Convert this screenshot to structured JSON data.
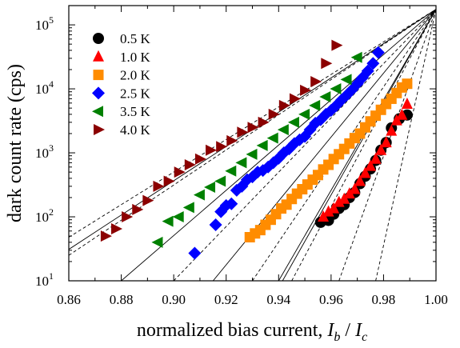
{
  "chart_data": {
    "type": "scatter",
    "xlabel": "normalized bias current, ",
    "xlabel_math": {
      "i": "I",
      "i_sub": "b",
      "sep": " / ",
      "c": "I",
      "c_sub": "c"
    },
    "ylabel": "dark count rate (cps)",
    "xlim": [
      0.86,
      1.0
    ],
    "ylim": [
      10,
      200000
    ],
    "y_scale": "log",
    "grid": false,
    "legend_position": "top-left",
    "x_ticks": [
      0.86,
      0.88,
      0.9,
      0.92,
      0.94,
      0.96,
      0.98,
      1.0
    ],
    "x_tick_labels": [
      "0.86",
      "0.88",
      "0.90",
      "0.92",
      "0.94",
      "0.96",
      "0.98",
      "1.00"
    ],
    "y_ticks": [
      {
        "value": 10,
        "base": "10",
        "exp": "1"
      },
      {
        "value": 100,
        "base": "10",
        "exp": "2"
      },
      {
        "value": 1000,
        "base": "10",
        "exp": "3"
      },
      {
        "value": 10000,
        "base": "10",
        "exp": "4"
      },
      {
        "value": 100000,
        "base": "10",
        "exp": "5"
      }
    ],
    "series": [
      {
        "name": "0.5 K",
        "marker": "circle",
        "color": "#000000",
        "x": [
          0.956,
          0.959,
          0.961,
          0.963,
          0.965,
          0.967,
          0.969,
          0.971,
          0.973,
          0.975,
          0.977,
          0.979,
          0.981,
          0.983,
          0.986,
          0.989
        ],
        "y": [
          82,
          88,
          110,
          135,
          155,
          200,
          240,
          330,
          430,
          560,
          760,
          1100,
          1450,
          2450,
          3400,
          3900
        ]
      },
      {
        "name": "1.0 K",
        "marker": "triangle-up",
        "color": "#ff0000",
        "x": [
          0.957,
          0.959,
          0.961,
          0.963,
          0.965,
          0.967,
          0.969,
          0.971,
          0.973,
          0.975,
          0.977,
          0.979,
          0.981,
          0.983,
          0.985,
          0.987,
          0.989
        ],
        "y": [
          100,
          120,
          135,
          170,
          190,
          230,
          270,
          360,
          480,
          620,
          800,
          1100,
          1450,
          2200,
          3200,
          3900,
          5800
        ]
      },
      {
        "name": "2.0 K",
        "marker": "square",
        "color": "#ff8c00",
        "x": [
          0.929,
          0.931,
          0.933,
          0.935,
          0.937,
          0.939,
          0.941,
          0.943,
          0.945,
          0.947,
          0.949,
          0.951,
          0.953,
          0.955,
          0.957,
          0.959,
          0.961,
          0.963,
          0.965,
          0.967,
          0.969,
          0.971,
          0.973,
          0.975,
          0.977,
          0.979,
          0.981,
          0.983,
          0.985,
          0.987,
          0.989
        ],
        "y": [
          48,
          55,
          62,
          75,
          90,
          110,
          135,
          155,
          190,
          230,
          270,
          320,
          380,
          450,
          550,
          650,
          800,
          950,
          1150,
          1400,
          1700,
          2000,
          2500,
          3100,
          3800,
          4700,
          5800,
          7000,
          8600,
          10500,
          12000
        ]
      },
      {
        "name": "2.5 K",
        "marker": "diamond",
        "color": "#0000ff",
        "x": [
          0.908,
          0.916,
          0.918,
          0.92,
          0.922,
          0.924,
          0.926,
          0.928,
          0.93,
          0.932,
          0.934,
          0.936,
          0.938,
          0.94,
          0.942,
          0.944,
          0.946,
          0.948,
          0.95,
          0.952,
          0.954,
          0.956,
          0.958,
          0.96,
          0.962,
          0.964,
          0.966,
          0.968,
          0.97,
          0.972,
          0.974,
          0.976,
          0.978
        ],
        "y": [
          27,
          75,
          120,
          150,
          160,
          260,
          300,
          380,
          420,
          500,
          530,
          600,
          700,
          820,
          1000,
          1150,
          1400,
          1600,
          1800,
          2300,
          2900,
          3300,
          4000,
          4600,
          5500,
          6700,
          8000,
          9700,
          12000,
          15000,
          19000,
          25000,
          37000
        ]
      },
      {
        "name": "3.5 K",
        "marker": "triangle-left",
        "color": "#008000",
        "x": [
          0.894,
          0.898,
          0.902,
          0.906,
          0.91,
          0.914,
          0.918,
          0.922,
          0.926,
          0.93,
          0.934,
          0.938,
          0.942,
          0.946,
          0.95,
          0.954,
          0.958,
          0.962,
          0.966,
          0.97
        ],
        "y": [
          40,
          85,
          100,
          140,
          220,
          290,
          360,
          520,
          700,
          950,
          1300,
          1700,
          2300,
          3000,
          4000,
          5500,
          7500,
          10000,
          14000,
          31000
        ]
      },
      {
        "name": "4.0 K",
        "marker": "triangle-right",
        "color": "#8b0000",
        "x": [
          0.874,
          0.878,
          0.882,
          0.886,
          0.89,
          0.894,
          0.898,
          0.902,
          0.906,
          0.91,
          0.914,
          0.918,
          0.922,
          0.926,
          0.93,
          0.934,
          0.938,
          0.942,
          0.946,
          0.95,
          0.954,
          0.958,
          0.962
        ],
        "y": [
          50,
          65,
          100,
          130,
          180,
          300,
          360,
          500,
          650,
          800,
          1100,
          1250,
          1550,
          2100,
          2500,
          3000,
          4000,
          5500,
          7000,
          9500,
          13000,
          25000,
          48000
        ]
      }
    ],
    "fit_lines": [
      {
        "style": "solid",
        "x": [
          0.86,
          1.0
        ],
        "y": [
          31,
          175000
        ]
      },
      {
        "style": "solid",
        "x": [
          0.88,
          1.0
        ],
        "y": [
          10,
          175000
        ]
      },
      {
        "style": "solid",
        "x": [
          0.915,
          1.0
        ],
        "y": [
          10,
          175000
        ]
      },
      {
        "style": "solid",
        "x": [
          0.94,
          1.0
        ],
        "y": [
          10,
          175000
        ]
      },
      {
        "style": "solid",
        "x": [
          0.9415,
          1.0
        ],
        "y": [
          10,
          175000
        ]
      },
      {
        "style": "dashed",
        "x": [
          0.86,
          1.0
        ],
        "y": [
          48,
          175000
        ]
      },
      {
        "style": "dashed",
        "x": [
          0.86,
          1.0
        ],
        "y": [
          25,
          175000
        ]
      },
      {
        "style": "dashed",
        "x": [
          0.9,
          1.0
        ],
        "y": [
          10,
          175000
        ]
      },
      {
        "style": "dashed",
        "x": [
          0.93,
          1.0
        ],
        "y": [
          10,
          175000
        ]
      },
      {
        "style": "dashed",
        "x": [
          0.945,
          1.0
        ],
        "y": [
          10,
          175000
        ]
      },
      {
        "style": "dashed",
        "x": [
          0.963,
          1.0
        ],
        "y": [
          10,
          175000
        ]
      },
      {
        "style": "dashed",
        "x": [
          0.977,
          1.0
        ],
        "y": [
          10,
          175000
        ]
      }
    ]
  }
}
